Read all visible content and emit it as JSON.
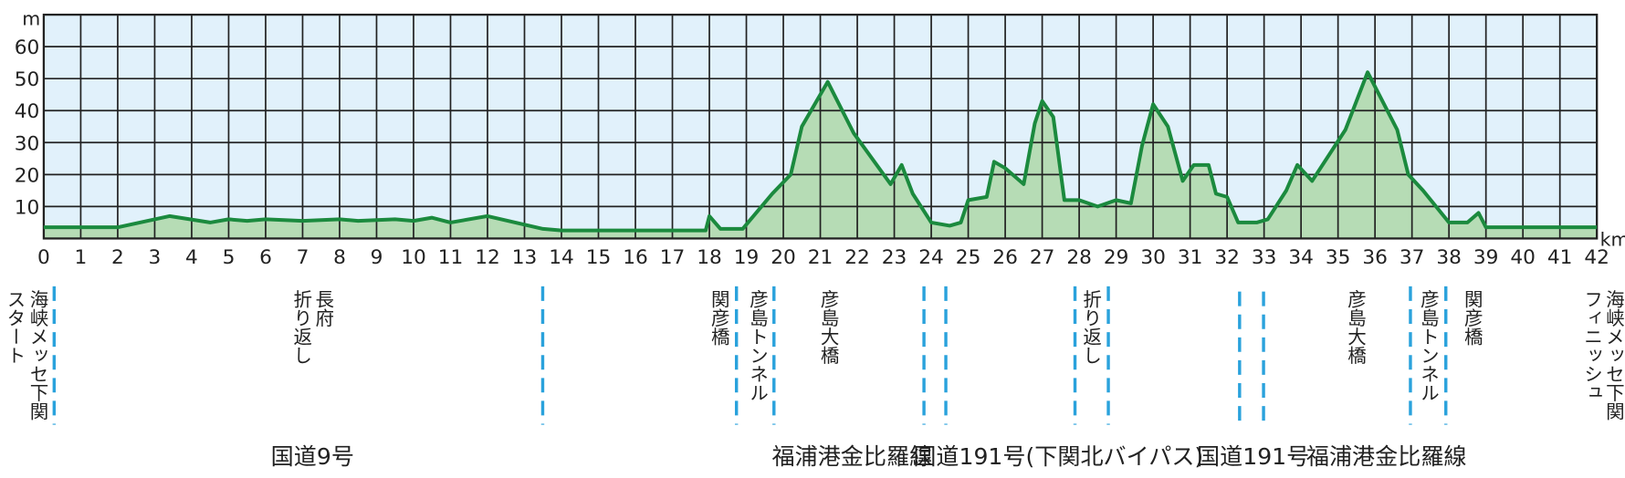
{
  "chart_data": {
    "type": "area",
    "x": [
      0,
      0.8,
      2,
      3.4,
      4.5,
      5,
      5.5,
      6,
      7,
      8,
      8.5,
      9.5,
      10,
      10.5,
      11,
      12,
      13.5,
      14,
      15,
      16,
      17,
      17.9,
      18,
      18.3,
      18.9,
      19.7,
      20.2,
      20.5,
      21.2,
      21.9,
      22.9,
      23.2,
      23.5,
      24,
      24.5,
      24.8,
      25,
      25.5,
      25.7,
      26,
      26.5,
      26.8,
      27,
      27.3,
      27.6,
      28,
      28.5,
      29,
      29.4,
      29.7,
      30,
      30.4,
      30.8,
      31.1,
      31.5,
      31.7,
      32,
      32.3,
      32.8,
      33.1,
      33.6,
      33.9,
      34.3,
      35.2,
      35.8,
      36.6,
      36.9,
      37.3,
      38,
      38.5,
      38.8,
      39,
      40,
      41,
      42
    ],
    "values": [
      3.5,
      3.5,
      3.5,
      7,
      5,
      6,
      5.5,
      6,
      5.5,
      6,
      5.5,
      6,
      5.5,
      6.5,
      5,
      7,
      3,
      2.5,
      2.5,
      2.5,
      2.5,
      2.5,
      7,
      3,
      3,
      14,
      20,
      35,
      49,
      33,
      17,
      23,
      14,
      5,
      4,
      5,
      12,
      13,
      24,
      22,
      17,
      36,
      43,
      38,
      12,
      12,
      10,
      12,
      11,
      29,
      42,
      35,
      18,
      23,
      23,
      14,
      13,
      5,
      5,
      6,
      15,
      23,
      18,
      34,
      52,
      34,
      20,
      15,
      5,
      5,
      8,
      3.5,
      3.5,
      3.5,
      3.5
    ],
    "color": "#1b8a3e",
    "fill": "#b6dcb5",
    "xlim": [
      0,
      42
    ],
    "xticks": [
      0,
      1,
      2,
      3,
      4,
      5,
      6,
      7,
      8,
      9,
      10,
      11,
      12,
      13,
      14,
      15,
      16,
      17,
      18,
      19,
      20,
      21,
      22,
      23,
      24,
      25,
      26,
      27,
      28,
      29,
      30,
      31,
      32,
      33,
      34,
      35,
      36,
      37,
      38,
      39,
      40,
      41,
      42
    ],
    "ylim": [
      0,
      70
    ],
    "yticks": [
      10,
      20,
      30,
      40,
      50,
      60
    ],
    "x_unit": "km",
    "y_unit": "m",
    "grid": true
  },
  "landmarks": [
    {
      "lines": [
        "海峡メッセ下関",
        "スタート"
      ]
    },
    {
      "lines": [
        "長府",
        "折り返し"
      ]
    },
    {
      "lines": [
        "関彦橋"
      ]
    },
    {
      "lines": [
        "彦島トンネル"
      ]
    },
    {
      "lines": [
        "彦島大橋"
      ]
    },
    {
      "lines": [
        "折り返し"
      ]
    },
    {
      "lines": [
        "彦島大橋"
      ]
    },
    {
      "lines": [
        "彦島トンネル"
      ]
    },
    {
      "lines": [
        "関彦橋"
      ]
    },
    {
      "lines": [
        "海峡メッセ下関",
        "フィニッシュ"
      ]
    }
  ],
  "roads": [
    "国道9号",
    "福浦港金比羅線",
    "国道191号(下関北バイパス)",
    "国道191号",
    "福浦港金比羅線"
  ]
}
